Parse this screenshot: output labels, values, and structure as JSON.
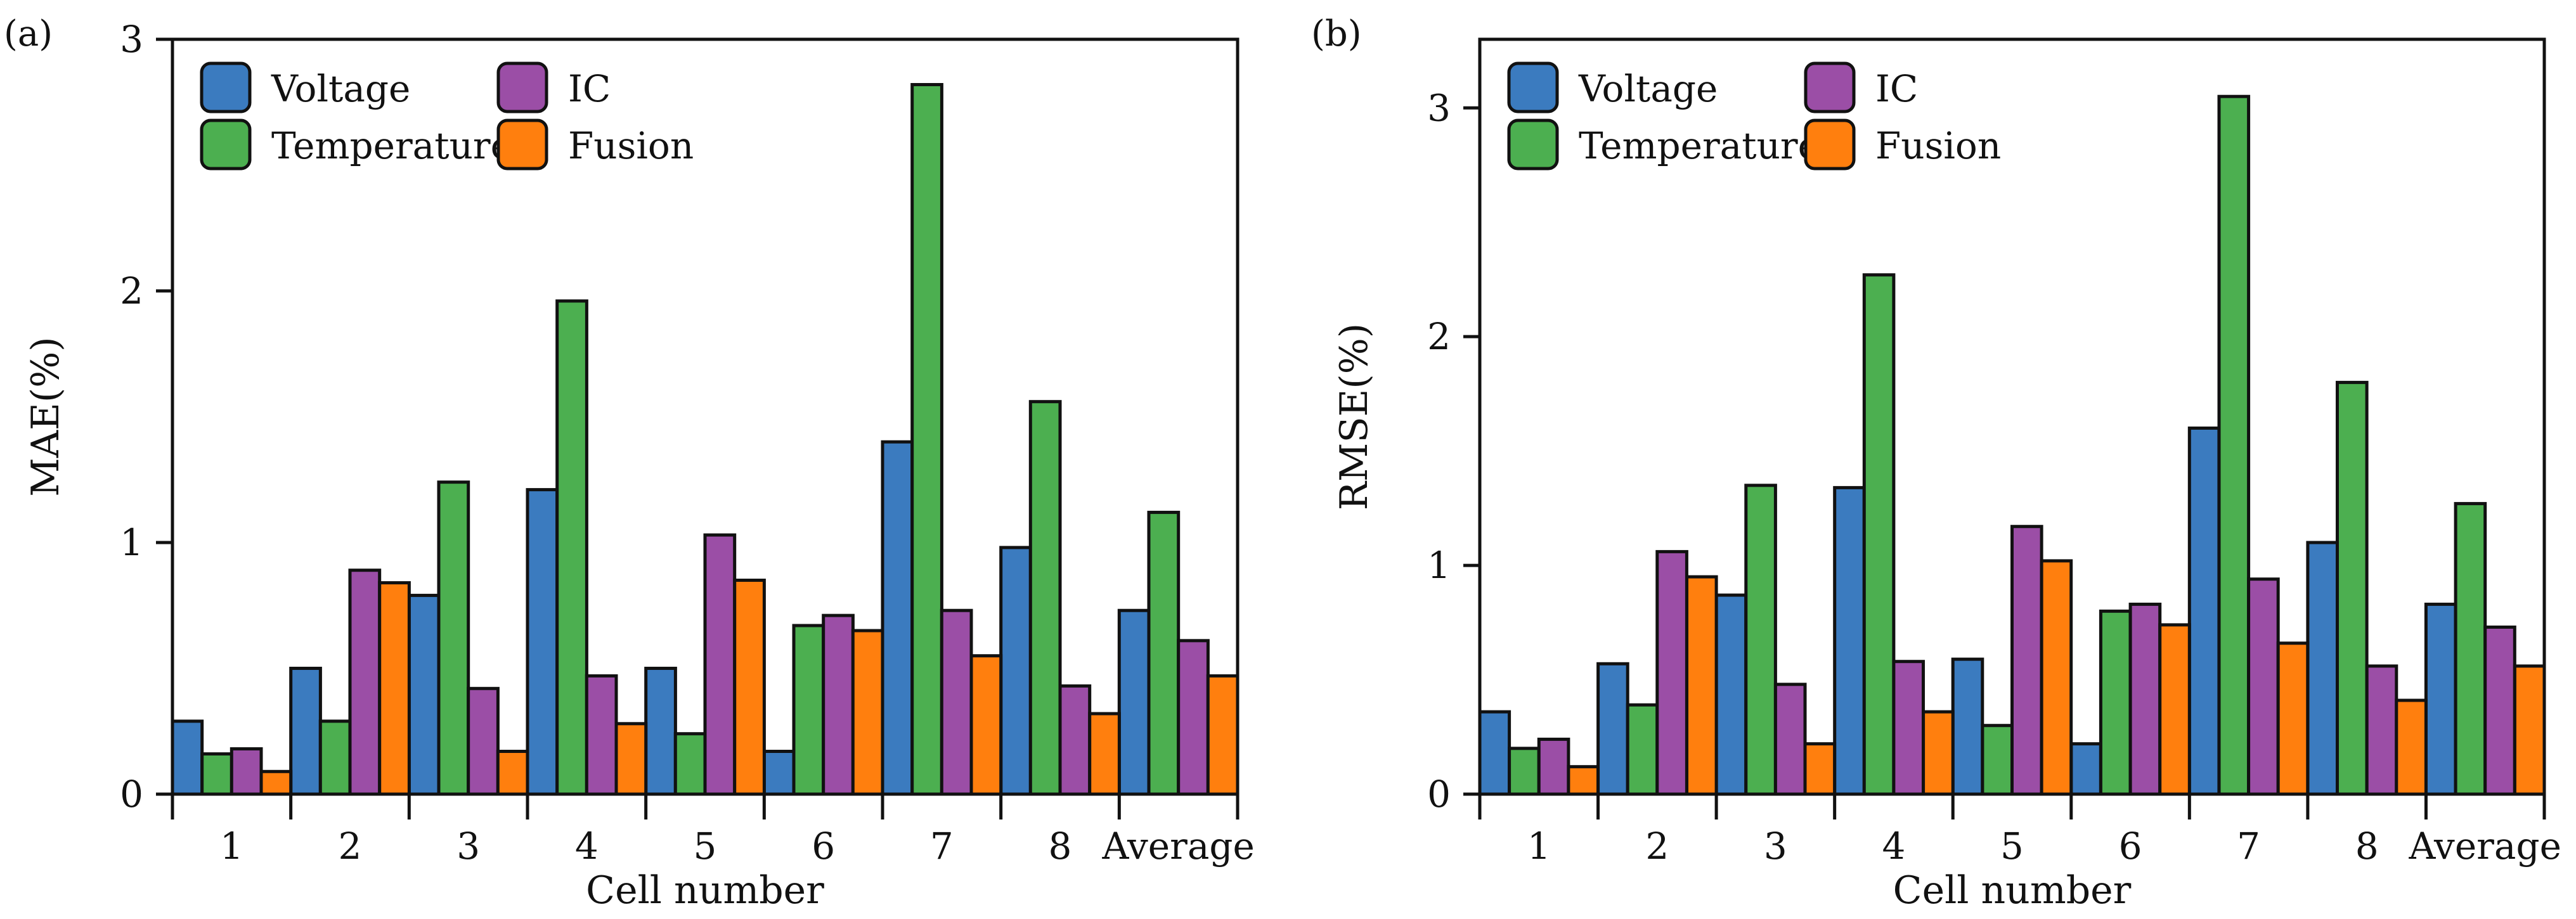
{
  "chart_data": [
    {
      "panel_label": "(a)",
      "type": "bar",
      "xlabel": "Cell number",
      "ylabel": "MAE(%)",
      "ylim": [
        0,
        3
      ],
      "yticks": [
        0,
        1,
        2,
        3
      ],
      "categories": [
        "1",
        "2",
        "3",
        "4",
        "5",
        "6",
        "7",
        "8",
        "Average"
      ],
      "series": [
        {
          "name": "Voltage",
          "values": [
            0.29,
            0.5,
            0.79,
            1.21,
            0.5,
            0.17,
            1.4,
            0.98,
            0.73
          ]
        },
        {
          "name": "Temperature",
          "values": [
            0.16,
            0.29,
            1.24,
            1.96,
            0.24,
            0.67,
            2.82,
            1.56,
            1.12
          ]
        },
        {
          "name": "IC",
          "values": [
            0.18,
            0.89,
            0.42,
            0.47,
            1.03,
            0.71,
            0.73,
            0.43,
            0.61
          ]
        },
        {
          "name": "Fusion",
          "values": [
            0.09,
            0.84,
            0.17,
            0.28,
            0.85,
            0.65,
            0.55,
            0.32,
            0.47
          ]
        }
      ],
      "legend_position": "top-left"
    },
    {
      "panel_label": "(b)",
      "type": "bar",
      "xlabel": "Cell number",
      "ylabel": "RMSE(%)",
      "ylim": [
        0,
        3.3
      ],
      "yticks": [
        0,
        1,
        2,
        3
      ],
      "categories": [
        "1",
        "2",
        "3",
        "4",
        "5",
        "6",
        "7",
        "8",
        "Average"
      ],
      "series": [
        {
          "name": "Voltage",
          "values": [
            0.36,
            0.57,
            0.87,
            1.34,
            0.59,
            0.22,
            1.6,
            1.1,
            0.83
          ]
        },
        {
          "name": "Temperature",
          "values": [
            0.2,
            0.39,
            1.35,
            2.27,
            0.3,
            0.8,
            3.05,
            1.8,
            1.27
          ]
        },
        {
          "name": "IC",
          "values": [
            0.24,
            1.06,
            0.48,
            0.58,
            1.17,
            0.83,
            0.94,
            0.56,
            0.73
          ]
        },
        {
          "name": "Fusion",
          "values": [
            0.12,
            0.95,
            0.22,
            0.36,
            1.02,
            0.74,
            0.66,
            0.41,
            0.56
          ]
        }
      ],
      "legend_position": "top-left"
    }
  ],
  "colors": {
    "Voltage": "#3b7bbf",
    "Temperature": "#4caf50",
    "IC": "#9b4ea6",
    "Fusion": "#ff7f0e"
  }
}
